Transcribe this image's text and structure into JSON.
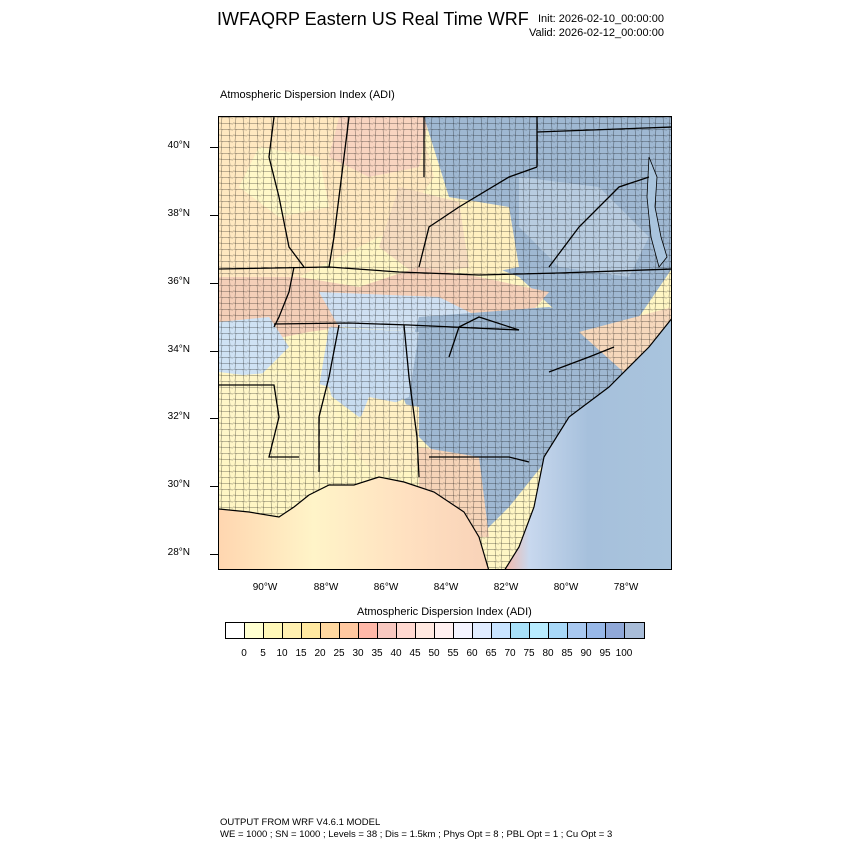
{
  "header": {
    "title": "IWFAQRP Eastern US Real Time WRF",
    "init": "Init: 2026-02-10_00:00:00",
    "valid": "Valid: 2026-02-12_00:00:00"
  },
  "map": {
    "title": "Atmospheric Dispersion Index   (ADI)",
    "lat_labels": [
      "40°N",
      "38°N",
      "36°N",
      "34°N",
      "32°N",
      "30°N",
      "28°N"
    ],
    "lon_labels": [
      "90°W",
      "88°W",
      "86°W",
      "84°W",
      "82°W",
      "80°W",
      "78°W"
    ],
    "colors": {
      "ocean": "#a9c4dd",
      "land_low": "#fffbc8",
      "land_mid": "#f5d2b8",
      "land_high": "#9fb8d2",
      "borders": "#000000"
    }
  },
  "colorbar": {
    "title": "Atmospheric Dispersion Index  (ADI)",
    "labels": [
      "0",
      "5",
      "10",
      "15",
      "20",
      "25",
      "30",
      "35",
      "40",
      "45",
      "50",
      "55",
      "60",
      "65",
      "70",
      "75",
      "80",
      "85",
      "90",
      "95",
      "100"
    ],
    "colors": [
      "#ffffff",
      "#ffffd0",
      "#fff8b8",
      "#fff0b0",
      "#ffe8a0",
      "#ffd8a0",
      "#ffc8a0",
      "#ffb8a8",
      "#f8c8c0",
      "#ffd8d0",
      "#ffe8e0",
      "#fff0f0",
      "#f4f4ff",
      "#e0ecff",
      "#c8e4ff",
      "#a8e0f8",
      "#b8ecff",
      "#a8d8f8",
      "#a8c8f0",
      "#98b8e8",
      "#90a8d8",
      "#a8bcd8"
    ]
  },
  "footer": {
    "line1": "OUTPUT FROM WRF V4.6.1 MODEL",
    "line2": "WE = 1000 ; SN = 1000 ; Levels = 38 ; Dis = 1.5km ; Phys Opt = 8 ; PBL Opt = 1 ; Cu Opt = 3"
  }
}
